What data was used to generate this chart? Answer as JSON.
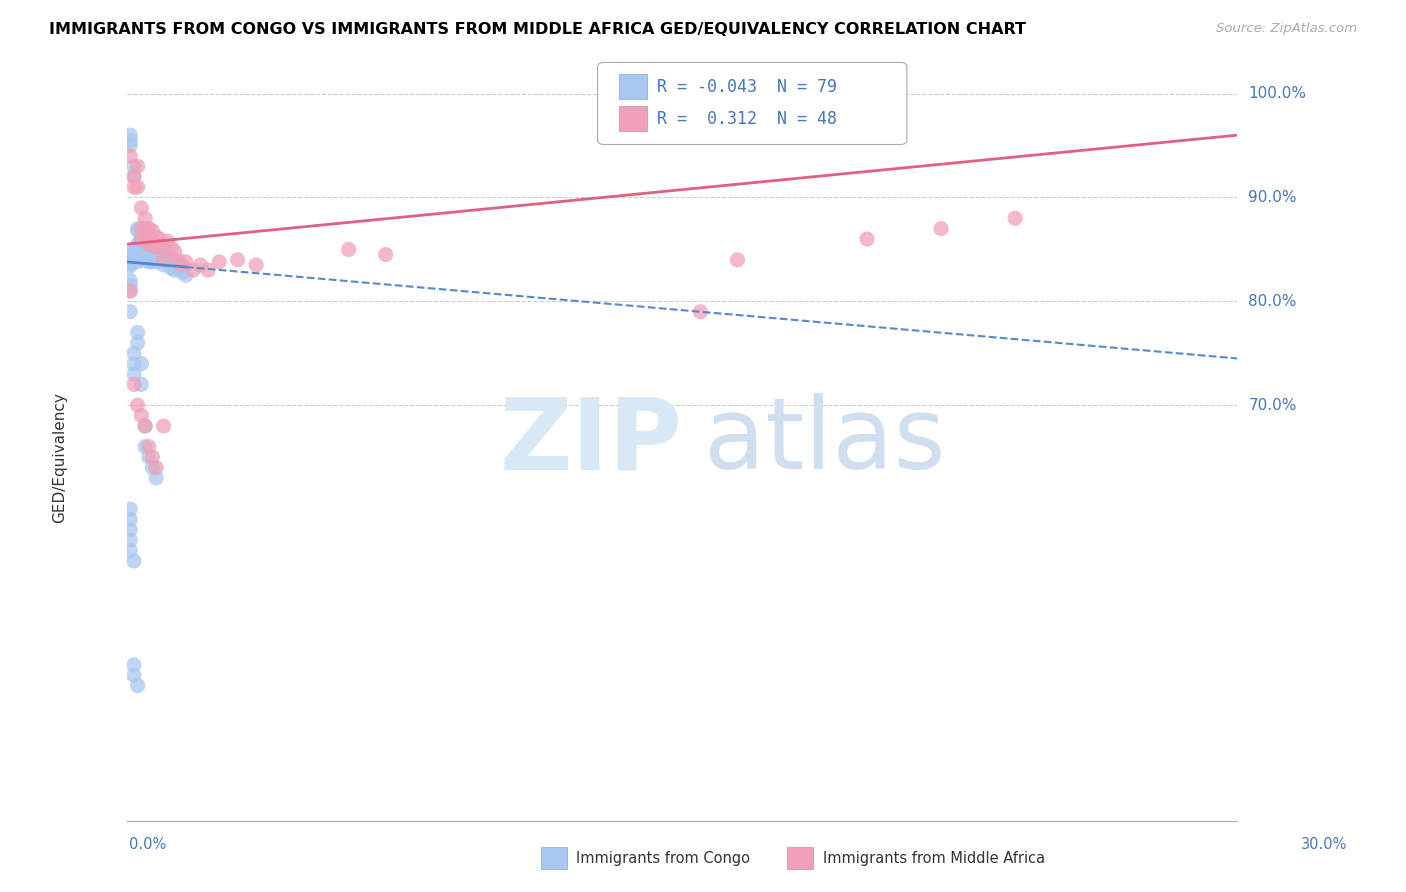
{
  "title": "IMMIGRANTS FROM CONGO VS IMMIGRANTS FROM MIDDLE AFRICA GED/EQUIVALENCY CORRELATION CHART",
  "source": "Source: ZipAtlas.com",
  "ylabel_label": "GED/Equivalency",
  "legend_label1": "Immigrants from Congo",
  "legend_label2": "Immigrants from Middle Africa",
  "r1": -0.043,
  "n1": 79,
  "r2": 0.312,
  "n2": 48,
  "color_blue": "#a8c8f0",
  "color_pink": "#f0a0b8",
  "color_blue_line": "#5588cc",
  "color_pink_line": "#e06080",
  "color_text_blue": "#4477bb",
  "color_text_dark": "#333333",
  "color_grid": "#cccccc",
  "xlim": [
    0.0,
    0.3
  ],
  "ylim": [
    0.3,
    1.03
  ],
  "yticks": [
    0.7,
    0.8,
    0.9,
    1.0
  ],
  "ytick_labels": [
    "70.0%",
    "80.0%",
    "90.0%",
    "100.0%"
  ],
  "blue_trend_x0": 0.0,
  "blue_trend_y0": 0.838,
  "blue_trend_x1": 0.3,
  "blue_trend_y1": 0.745,
  "pink_trend_x0": 0.0,
  "pink_trend_y0": 0.855,
  "pink_trend_x1": 0.3,
  "pink_trend_y1": 0.96,
  "blue_scatter_x": [
    0.001,
    0.001,
    0.001,
    0.001,
    0.001,
    0.001,
    0.001,
    0.002,
    0.002,
    0.002,
    0.002,
    0.002,
    0.002,
    0.002,
    0.003,
    0.003,
    0.003,
    0.003,
    0.003,
    0.003,
    0.004,
    0.004,
    0.004,
    0.004,
    0.004,
    0.005,
    0.005,
    0.005,
    0.005,
    0.006,
    0.006,
    0.006,
    0.006,
    0.007,
    0.007,
    0.007,
    0.008,
    0.008,
    0.008,
    0.009,
    0.009,
    0.01,
    0.01,
    0.01,
    0.011,
    0.011,
    0.012,
    0.012,
    0.013,
    0.013,
    0.014,
    0.015,
    0.015,
    0.016,
    0.001,
    0.001,
    0.001,
    0.001,
    0.002,
    0.002,
    0.002,
    0.003,
    0.003,
    0.004,
    0.004,
    0.005,
    0.005,
    0.006,
    0.007,
    0.008,
    0.002,
    0.002,
    0.003,
    0.001,
    0.001,
    0.001,
    0.001,
    0.001,
    0.002
  ],
  "blue_scatter_y": [
    0.96,
    0.955,
    0.95,
    0.84,
    0.838,
    0.836,
    0.834,
    0.93,
    0.92,
    0.85,
    0.848,
    0.846,
    0.844,
    0.842,
    0.87,
    0.868,
    0.855,
    0.852,
    0.84,
    0.838,
    0.86,
    0.858,
    0.85,
    0.845,
    0.84,
    0.855,
    0.852,
    0.848,
    0.84,
    0.86,
    0.855,
    0.85,
    0.838,
    0.855,
    0.848,
    0.838,
    0.852,
    0.845,
    0.838,
    0.848,
    0.84,
    0.85,
    0.845,
    0.835,
    0.845,
    0.838,
    0.84,
    0.832,
    0.838,
    0.83,
    0.835,
    0.832,
    0.828,
    0.825,
    0.82,
    0.815,
    0.81,
    0.79,
    0.75,
    0.74,
    0.73,
    0.77,
    0.76,
    0.74,
    0.72,
    0.68,
    0.66,
    0.65,
    0.64,
    0.63,
    0.45,
    0.44,
    0.43,
    0.6,
    0.59,
    0.58,
    0.57,
    0.56,
    0.55
  ],
  "pink_scatter_x": [
    0.001,
    0.002,
    0.002,
    0.003,
    0.003,
    0.004,
    0.004,
    0.004,
    0.005,
    0.005,
    0.005,
    0.006,
    0.006,
    0.007,
    0.007,
    0.008,
    0.008,
    0.009,
    0.01,
    0.01,
    0.011,
    0.012,
    0.013,
    0.014,
    0.015,
    0.016,
    0.018,
    0.02,
    0.022,
    0.025,
    0.03,
    0.035,
    0.06,
    0.07,
    0.155,
    0.165,
    0.2,
    0.22,
    0.24,
    0.001,
    0.002,
    0.003,
    0.004,
    0.005,
    0.006,
    0.007,
    0.008,
    0.01
  ],
  "pink_scatter_y": [
    0.94,
    0.92,
    0.91,
    0.93,
    0.91,
    0.89,
    0.87,
    0.86,
    0.88,
    0.87,
    0.86,
    0.87,
    0.855,
    0.868,
    0.858,
    0.862,
    0.852,
    0.86,
    0.85,
    0.84,
    0.858,
    0.852,
    0.848,
    0.84,
    0.835,
    0.838,
    0.83,
    0.835,
    0.83,
    0.838,
    0.84,
    0.835,
    0.85,
    0.845,
    0.79,
    0.84,
    0.86,
    0.87,
    0.88,
    0.81,
    0.72,
    0.7,
    0.69,
    0.68,
    0.66,
    0.65,
    0.64,
    0.68
  ]
}
